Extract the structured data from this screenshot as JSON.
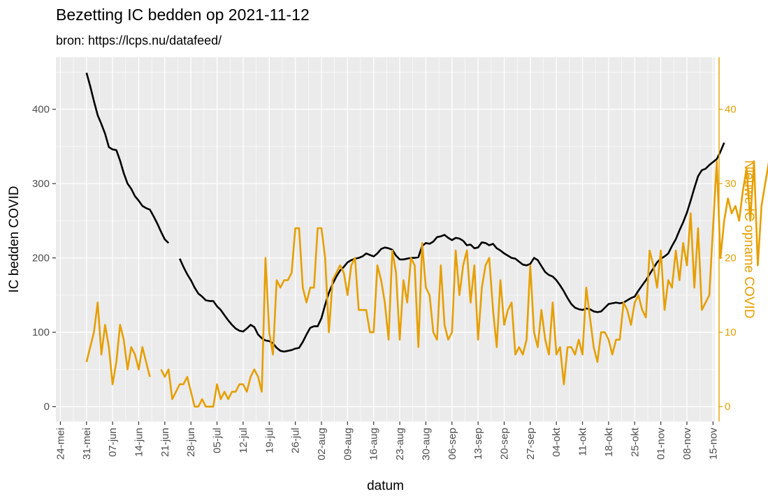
{
  "chart_data": {
    "type": "line",
    "title": "Bezetting IC bedden op 2021-11-12",
    "subtitle": "bron: https://lcps.nu/datafeed/",
    "xlabel": "datum",
    "ylabel_left": "IC bedden COVID",
    "ylabel_right": "Nieuwe IC opname COVID",
    "colors": {
      "left_series": "#000000",
      "right_series": "#E69F00",
      "panel": "#EBEBEB",
      "grid": "#FFFFFF"
    },
    "x_ticks": [
      "24-mei",
      "31-mei",
      "07-jun",
      "14-jun",
      "21-jun",
      "28-jun",
      "05-jul",
      "12-jul",
      "19-jul",
      "26-jul",
      "02-aug",
      "09-aug",
      "16-aug",
      "23-aug",
      "30-aug",
      "06-sep",
      "13-sep",
      "20-sep",
      "27-sep",
      "04-okt",
      "11-okt",
      "18-okt",
      "25-okt",
      "01-nov",
      "08-nov",
      "15-nov"
    ],
    "x_range_days": [
      -1.2,
      175.5
    ],
    "left_axis": {
      "ticks": [
        0,
        100,
        200,
        300,
        400
      ],
      "range": [
        -20,
        470
      ]
    },
    "right_axis": {
      "ticks": [
        0,
        10,
        20,
        30,
        40
      ],
      "range": [
        -2,
        47
      ]
    },
    "series": [
      {
        "name": "IC bedden COVID",
        "axis": "left",
        "day0": 7,
        "values": [
          449,
          431,
          411,
          392,
          380,
          367,
          349,
          346,
          345,
          331,
          314,
          300,
          293,
          283,
          277,
          270,
          267,
          265,
          256,
          246,
          235,
          225,
          220,
          null,
          null,
          199,
          188,
          178,
          170,
          160,
          152,
          148,
          143,
          142,
          142,
          135,
          130,
          123,
          116,
          110,
          105,
          102,
          101,
          105,
          110,
          107,
          97,
          92,
          89,
          88,
          85,
          79,
          75,
          74,
          75,
          76,
          78,
          79,
          87,
          97,
          106,
          108,
          108,
          119,
          137,
          153,
          165,
          175,
          183,
          188,
          194,
          197,
          199,
          200,
          202,
          206,
          204,
          202,
          206,
          212,
          214,
          213,
          211,
          203,
          198,
          198,
          199,
          200,
          200,
          201,
          216,
          220,
          219,
          222,
          228,
          229,
          231,
          227,
          224,
          227,
          226,
          223,
          217,
          218,
          213,
          214,
          221,
          220,
          217,
          219,
          213,
          210,
          206,
          203,
          200,
          199,
          195,
          191,
          190,
          192,
          200,
          197,
          189,
          181,
          177,
          175,
          170,
          163,
          155,
          146,
          138,
          133,
          131,
          130,
          132,
          131,
          128,
          127,
          128,
          133,
          138,
          139,
          140,
          139,
          140,
          143,
          146,
          148,
          156,
          163,
          170,
          178,
          186,
          194,
          199,
          202,
          206,
          216,
          225,
          237,
          248,
          261,
          277,
          294,
          310,
          318,
          320,
          325,
          329,
          333,
          343,
          355
        ]
      },
      {
        "name": "Nieuwe IC opname COVID",
        "axis": "right",
        "day0": 7,
        "values": [
          6,
          8,
          10,
          14,
          7,
          11,
          8,
          3,
          6,
          11,
          9,
          5,
          8,
          7,
          5,
          8,
          6,
          4,
          null,
          null,
          5,
          4,
          5,
          1,
          2,
          3,
          3,
          4,
          2,
          0,
          0,
          1,
          0,
          0,
          0,
          3,
          1,
          2,
          1,
          2,
          2,
          3,
          3,
          2,
          4,
          5,
          4,
          2,
          20,
          10,
          7,
          17,
          16,
          17,
          17,
          18,
          24,
          24,
          16,
          14,
          16,
          16,
          24,
          24,
          20,
          10,
          17,
          18,
          19,
          18,
          15,
          19,
          20,
          13,
          13,
          13,
          10,
          10,
          19,
          17,
          14,
          9,
          21,
          18,
          9,
          17,
          14,
          20,
          19,
          8,
          22,
          16,
          15,
          10,
          9,
          19,
          11,
          9,
          10,
          21,
          15,
          19,
          21,
          14,
          19,
          9,
          16,
          19,
          20,
          13,
          8,
          17,
          11,
          13,
          14,
          7,
          8,
          7,
          9,
          19,
          10,
          8,
          13,
          9,
          7,
          14,
          7,
          8,
          3,
          8,
          8,
          7,
          9,
          7,
          16,
          12,
          8,
          6,
          10,
          10,
          9,
          7,
          9,
          9,
          14,
          13,
          11,
          14,
          15,
          13,
          12,
          21,
          19,
          16,
          21,
          13,
          17,
          16,
          21,
          17,
          22,
          19,
          26,
          16,
          24,
          13,
          14,
          15,
          24,
          33,
          20,
          25,
          28,
          26,
          27,
          25,
          29,
          32,
          25,
          33,
          19,
          27,
          30,
          33,
          34
        ]
      }
    ]
  }
}
